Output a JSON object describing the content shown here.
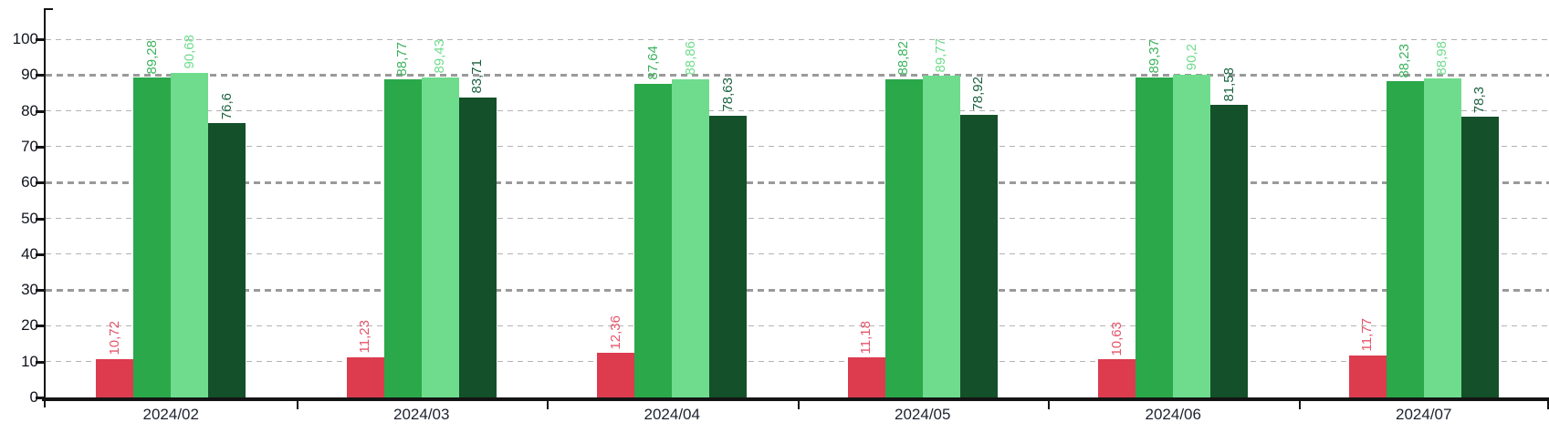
{
  "chart_data": {
    "type": "bar",
    "title": "",
    "xlabel": "",
    "ylabel": "",
    "legend": "none",
    "grid": "dashed horizontal, thicker major lines at 30/60/90",
    "value_label_style": "rotated 90deg above each bar, decimal comma format",
    "categories": [
      "2024/02",
      "2024/03",
      "2024/04",
      "2024/05",
      "2024/06",
      "2024/07"
    ],
    "series": [
      {
        "name": "red",
        "color": "#dc3c4e",
        "label_color": "#e4556a",
        "values": [
          10.72,
          11.23,
          12.36,
          11.18,
          10.63,
          11.77
        ],
        "labels": [
          "10,72",
          "11,23",
          "12,36",
          "11,18",
          "10,63",
          "11,77"
        ]
      },
      {
        "name": "green",
        "color": "#2aa84a",
        "label_color": "#3bb25d",
        "values": [
          89.28,
          88.77,
          87.64,
          88.82,
          89.37,
          88.23
        ],
        "labels": [
          "89,28",
          "88,77",
          "87,64",
          "88,82",
          "89,37",
          "88,23"
        ]
      },
      {
        "name": "light-green",
        "color": "#6edc8c",
        "label_color": "#6edc8c",
        "values": [
          90.68,
          89.43,
          88.86,
          89.77,
          90.2,
          88.98
        ],
        "labels": [
          "90,68",
          "89,43",
          "88,86",
          "89,77",
          "90,2",
          "88,98"
        ]
      },
      {
        "name": "dark-green",
        "color": "#14502a",
        "label_color": "#1b6340",
        "values": [
          76.6,
          83.71,
          78.63,
          78.92,
          81.58,
          78.3
        ],
        "labels": [
          "76,6",
          "83,71",
          "78,63",
          "78,92",
          "81,58",
          "78,3"
        ]
      }
    ],
    "y_axis": {
      "min": 0,
      "max": 100,
      "step": 10,
      "ticks": [
        "0",
        "10",
        "20",
        "30",
        "40",
        "50",
        "60",
        "70",
        "80",
        "90",
        "100"
      ],
      "major_gridlines": [
        30,
        60,
        90
      ]
    }
  }
}
